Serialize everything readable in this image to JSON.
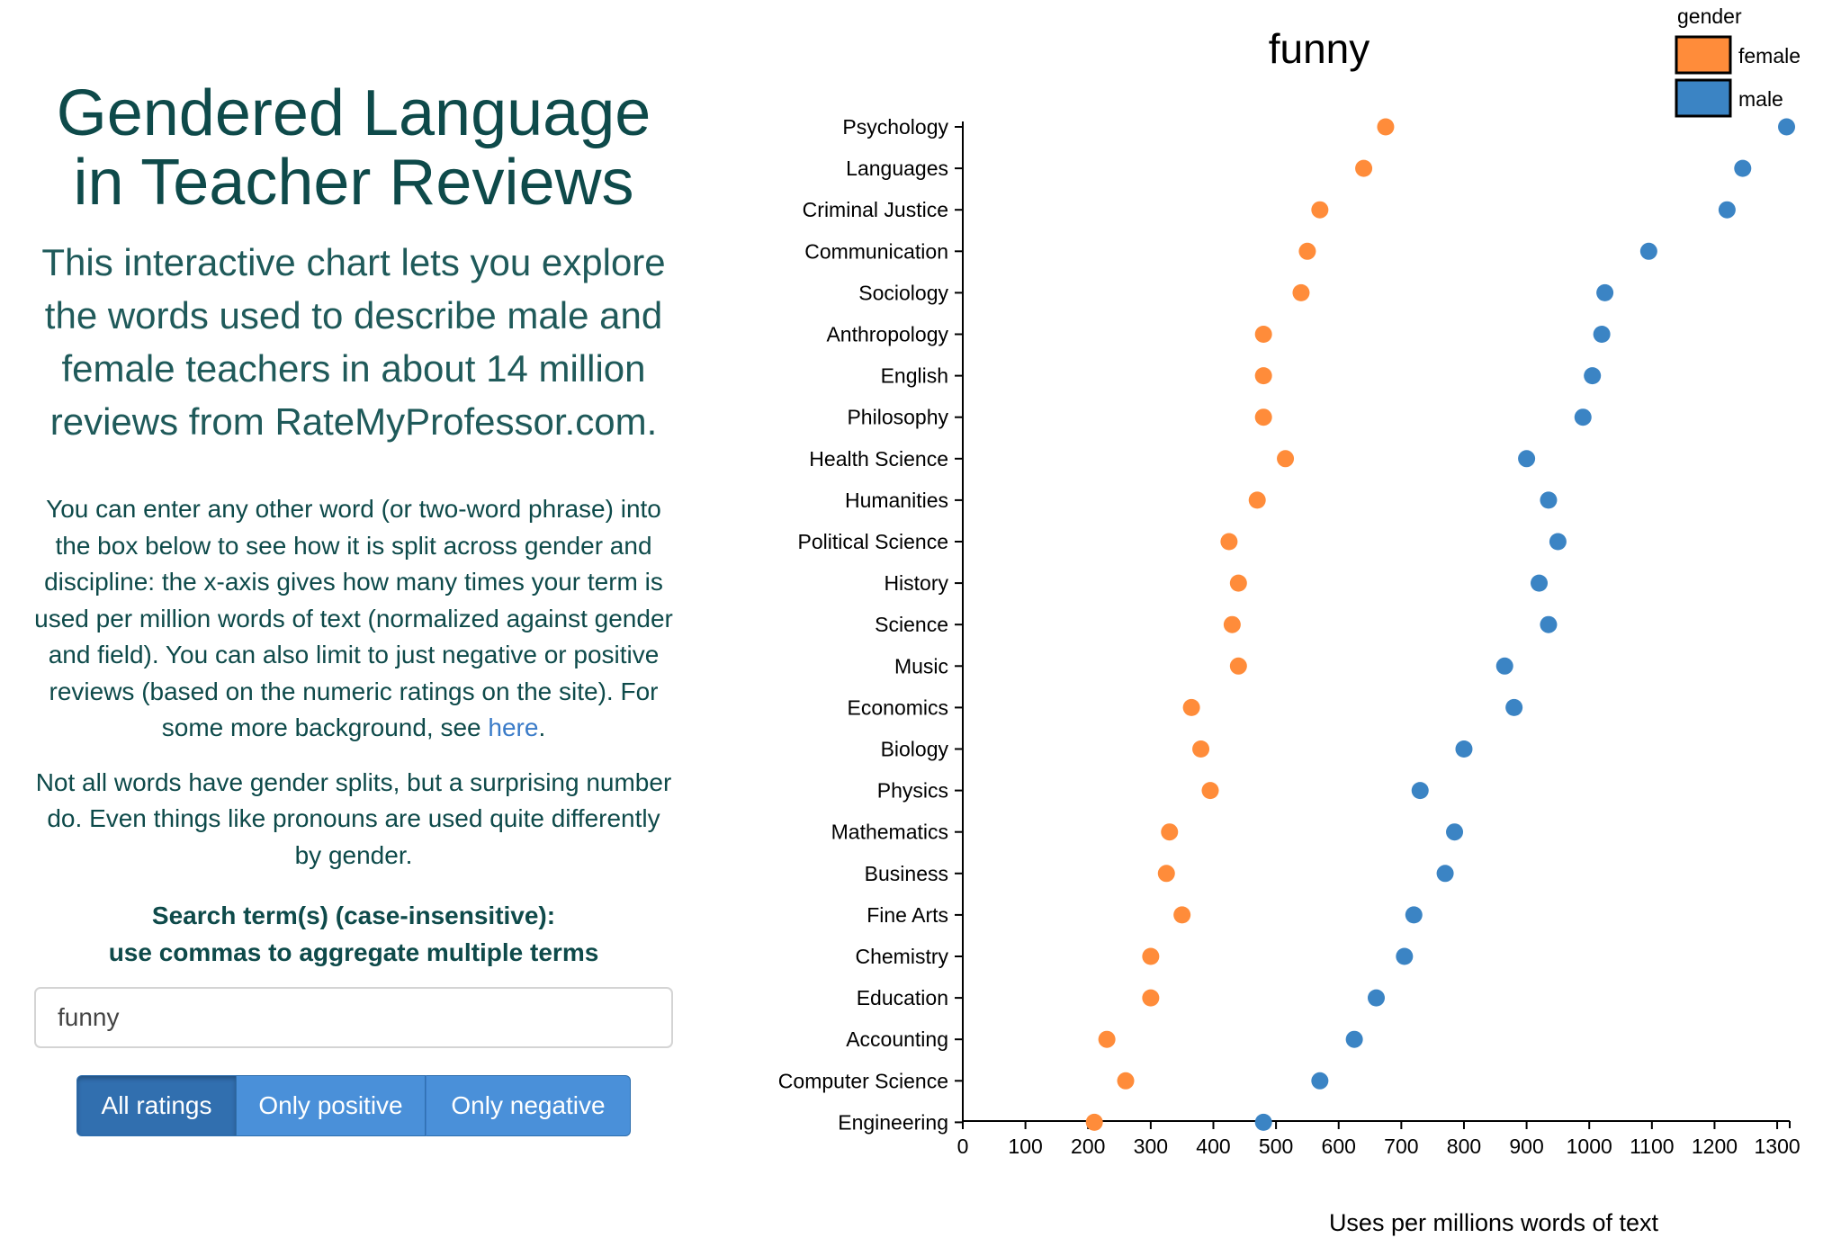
{
  "header": {
    "title": "Gendered Language in Teacher Reviews",
    "intro": "This interactive chart lets you explore the words used to describe male and female teachers in about 14 million reviews from RateMyProfessor.com."
  },
  "description": {
    "p1_text": "You can enter any other word (or two-word phrase) into the box below to see how it is split across gender and discipline: the x-axis gives how many times your term is used per million words of text (normalized against gender and field). You can also limit to just negative or positive reviews (based on the numeric ratings on the site). For some more background, see ",
    "p1_link": "here",
    "p1_end": ".",
    "p2": "Not all words have gender splits, but a surprising number do. Even things like pronouns are used quite differently by gender."
  },
  "search": {
    "label_line1": "Search term(s) (case-insensitive):",
    "label_line2": "use commas to aggregate multiple terms",
    "value": "funny"
  },
  "filters": {
    "all": "All ratings",
    "positive": "Only positive",
    "negative": "Only negative",
    "selected": "All ratings"
  },
  "colors": {
    "female": "#ff8c3a",
    "male": "#3b84c4"
  },
  "chart_data": {
    "type": "scatter",
    "title": "funny",
    "xlabel": "Uses per millions words of text",
    "ylabel": "",
    "xlim": [
      0,
      1320
    ],
    "xticks": [
      0,
      100,
      200,
      300,
      400,
      500,
      600,
      700,
      800,
      900,
      1000,
      1100,
      1200,
      1300
    ],
    "legend_title": "gender",
    "legend_position": "top-right",
    "categories": [
      "Psychology",
      "Languages",
      "Criminal Justice",
      "Communication",
      "Sociology",
      "Anthropology",
      "English",
      "Philosophy",
      "Health Science",
      "Humanities",
      "Political Science",
      "History",
      "Science",
      "Music",
      "Economics",
      "Biology",
      "Physics",
      "Mathematics",
      "Business",
      "Fine Arts",
      "Chemistry",
      "Education",
      "Accounting",
      "Computer Science",
      "Engineering"
    ],
    "series": [
      {
        "name": "female",
        "values": [
          675,
          640,
          570,
          550,
          540,
          480,
          480,
          480,
          515,
          470,
          425,
          440,
          430,
          440,
          365,
          380,
          395,
          330,
          325,
          350,
          300,
          300,
          230,
          260,
          210
        ]
      },
      {
        "name": "male",
        "values": [
          1315,
          1245,
          1220,
          1095,
          1025,
          1020,
          1005,
          990,
          900,
          935,
          950,
          920,
          935,
          865,
          880,
          800,
          730,
          785,
          770,
          720,
          705,
          660,
          625,
          570,
          480
        ]
      }
    ]
  }
}
